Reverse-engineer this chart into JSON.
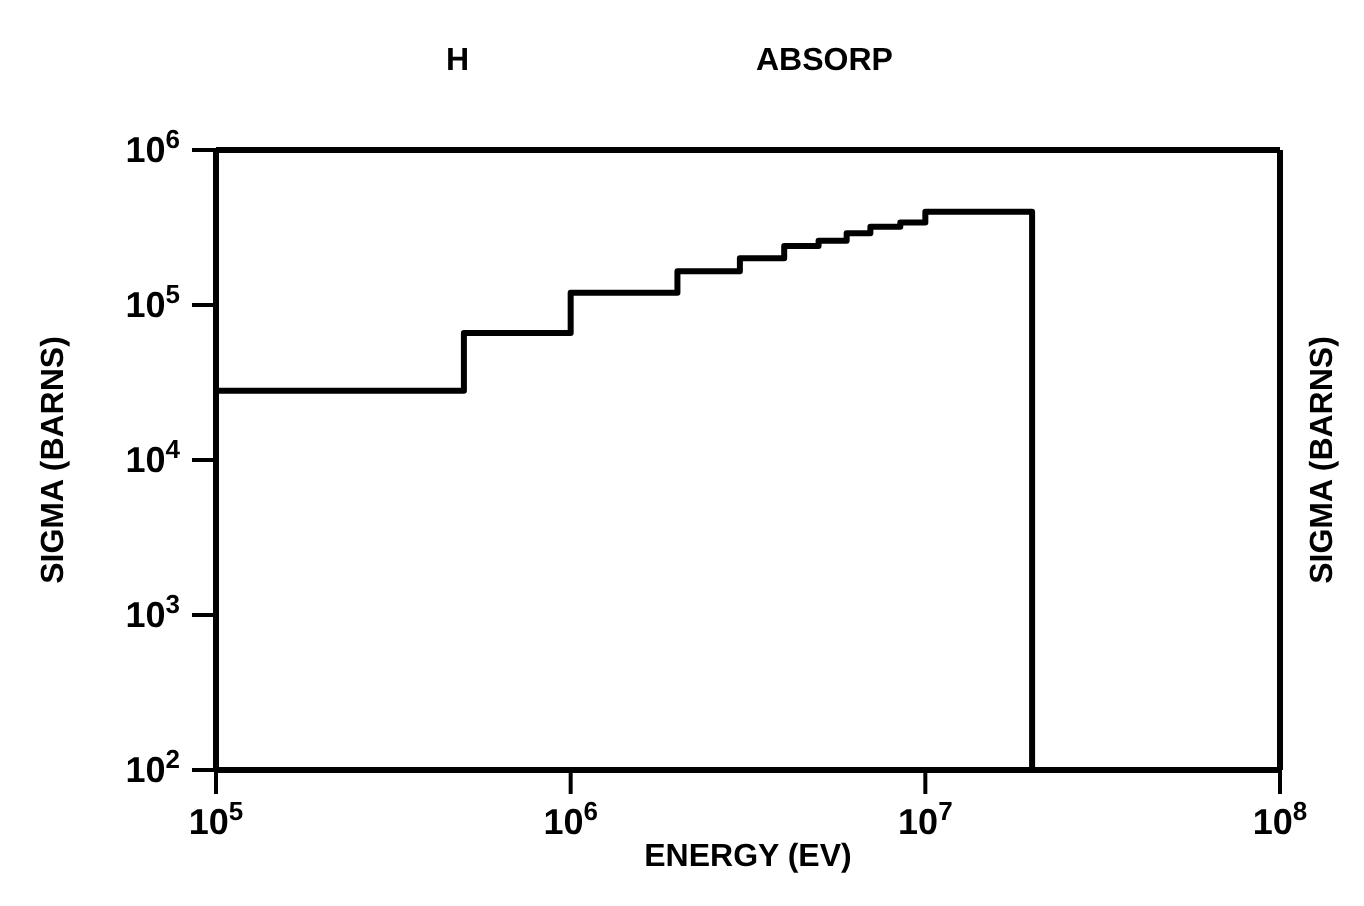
{
  "chart_data": {
    "type": "step",
    "title": "H",
    "subtitle": "ABSORP",
    "xlabel": "ENERGY (EV)",
    "ylabel": "SIGMA (BARNS)",
    "y2label": "SIGMA (BARNS)",
    "x": [
      100000,
      500000,
      1000000,
      2000000,
      3000000,
      4000000,
      5000000,
      6000000,
      7000000,
      8500000,
      10000000,
      20000000
    ],
    "series": [
      {
        "color": "#000000",
        "values": [
          28000,
          66000,
          120000,
          165000,
          200000,
          240000,
          260000,
          290000,
          320000,
          340000,
          400000,
          100
        ]
      }
    ],
    "log": "xy",
    "xlim": [
      100000,
      100000000
    ],
    "xticks": [
      {
        "value": 100000,
        "label": "10$^{5}$"
      },
      {
        "value": 1000000,
        "label": "10$^{6}$"
      },
      {
        "value": 10000000,
        "label": "10$^{7}$"
      },
      {
        "value": 100000000,
        "label": "10$^{8}$"
      }
    ],
    "ylim": [
      100,
      1000000
    ],
    "yticks": [
      {
        "value": 100,
        "label": "10$^{2}$"
      },
      {
        "value": 1000,
        "label": "10$^{3}$"
      },
      {
        "value": 10000,
        "label": "10$^{4}$"
      },
      {
        "value": 100000,
        "label": "10$^{5}$"
      },
      {
        "value": 1000000,
        "label": "10$^{6}$"
      }
    ],
    "tick_labels": "xy",
    "marker": "none",
    "line_style": "solid"
  }
}
